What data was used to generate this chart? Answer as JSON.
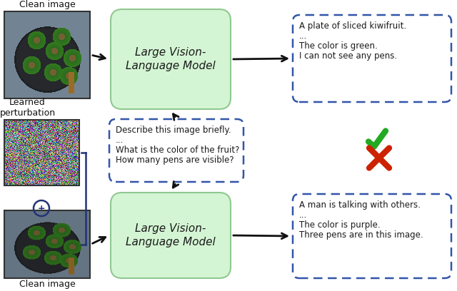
{
  "bg_color": "#ffffff",
  "model_box_color": "#d4f5d4",
  "model_box_edge": "#90c890",
  "query_box_color": "#ffffff",
  "query_box_edge": "#3355aa",
  "output_box_color": "#ffffff",
  "output_box_edge": "#3355aa",
  "top_model_text": "Large Vision-\nLanguage Model",
  "bot_model_text": "Large Vision-\nLanguage Model",
  "query_lines": [
    "Describe this image briefly.",
    "...",
    "What is the color of the fruit?",
    "How many pens are visible?"
  ],
  "top_output_lines": [
    "A plate of sliced kiwifruit.",
    "...",
    "The color is green.",
    "I can not see any pens."
  ],
  "bot_output_lines": [
    "A man is talking with others.",
    "...",
    "The color is purple.",
    "Three pens are in this image."
  ],
  "label_clean_top": "Clean image",
  "label_perturb": "Learned\nperturbation",
  "label_clean_bot": "Clean image",
  "arrow_color": "#111111",
  "check_color": "#22aa22",
  "cross_color": "#cc2200",
  "bracket_color": "#223377",
  "font_size_model": 11,
  "font_size_box": 8.5,
  "font_size_label": 9,
  "font_size_symbol": 9
}
